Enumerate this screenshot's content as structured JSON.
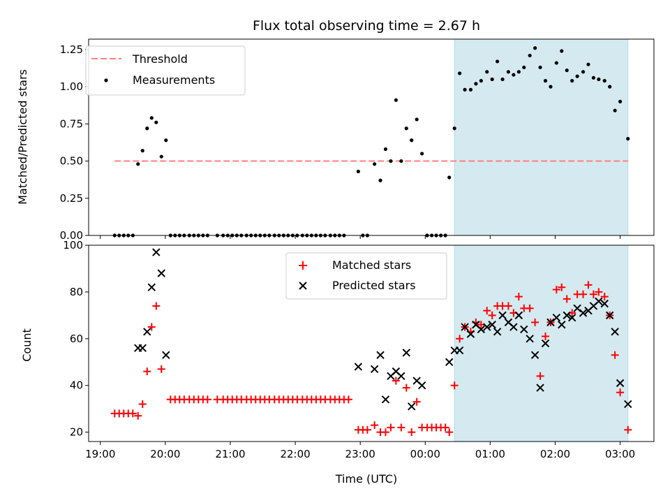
{
  "figure": {
    "title": "Flux total observing time = 2.67 h",
    "xlabel": "Time (UTC)",
    "x_ticks": [
      "19:00",
      "20:00",
      "21:00",
      "22:00",
      "23:00",
      "00:00",
      "01:00",
      "02:00",
      "03:00"
    ]
  },
  "chart_data": [
    {
      "type": "scatter",
      "title": "Flux total observing time = 2.67 h",
      "xlabel": "",
      "ylabel": "Matched/Predicted stars",
      "x_unit": "hours since 19:00 UTC",
      "xlim": [
        -0.18,
        8.52
      ],
      "ylim": [
        0.0,
        1.32
      ],
      "y_ticks": [
        "0.00",
        "0.25",
        "0.50",
        "0.75",
        "1.00",
        "1.25"
      ],
      "y_tick_values": [
        0,
        0.25,
        0.5,
        0.75,
        1.0,
        1.25
      ],
      "highlight_span": [
        5.45,
        8.12
      ],
      "highlight_color": "#d4eaf0",
      "legend": {
        "position": "upper-left",
        "entries": [
          "Threshold",
          "Measurements"
        ]
      },
      "threshold": {
        "name": "Threshold",
        "y": 0.5,
        "x_range": [
          0.22,
          8.12
        ],
        "color": "#ff7f7f"
      },
      "series": [
        {
          "name": "Measurements",
          "color": "#000000",
          "points": [
            [
              0.22,
              0
            ],
            [
              0.29,
              0
            ],
            [
              0.36,
              0
            ],
            [
              0.43,
              0
            ],
            [
              0.5,
              0
            ],
            [
              0.58,
              0.48
            ],
            [
              0.65,
              0.57
            ],
            [
              0.72,
              0.72
            ],
            [
              0.79,
              0.79
            ],
            [
              0.86,
              0.76
            ],
            [
              0.94,
              0.53
            ],
            [
              1.01,
              0.64
            ],
            [
              1.08,
              0
            ],
            [
              1.15,
              0
            ],
            [
              1.22,
              0
            ],
            [
              1.29,
              0
            ],
            [
              1.37,
              0
            ],
            [
              1.44,
              0
            ],
            [
              1.51,
              0
            ],
            [
              1.58,
              0
            ],
            [
              1.65,
              0
            ],
            [
              1.8,
              0
            ],
            [
              1.89,
              0
            ],
            [
              1.96,
              0
            ],
            [
              2.03,
              0
            ],
            [
              2.1,
              0
            ],
            [
              2.17,
              0
            ],
            [
              2.25,
              0
            ],
            [
              2.32,
              0
            ],
            [
              2.39,
              0
            ],
            [
              2.46,
              0
            ],
            [
              2.53,
              0
            ],
            [
              2.6,
              0
            ],
            [
              2.68,
              0
            ],
            [
              2.75,
              0
            ],
            [
              2.82,
              0
            ],
            [
              2.89,
              0
            ],
            [
              2.96,
              0
            ],
            [
              3.03,
              0
            ],
            [
              3.11,
              0
            ],
            [
              3.18,
              0
            ],
            [
              3.25,
              0
            ],
            [
              3.32,
              0
            ],
            [
              3.39,
              0
            ],
            [
              3.46,
              0
            ],
            [
              3.54,
              0
            ],
            [
              3.61,
              0
            ],
            [
              3.68,
              0
            ],
            [
              3.75,
              0
            ],
            [
              3.97,
              0.43
            ],
            [
              4.04,
              0
            ],
            [
              4.11,
              0
            ],
            [
              4.22,
              0.48
            ],
            [
              4.31,
              0.37
            ],
            [
              4.39,
              0.58
            ],
            [
              4.47,
              0.5
            ],
            [
              4.55,
              0.91
            ],
            [
              4.63,
              0.5
            ],
            [
              4.71,
              0.72
            ],
            [
              4.79,
              0.64
            ],
            [
              4.87,
              0.78
            ],
            [
              4.95,
              0.55
            ],
            [
              5.03,
              0
            ],
            [
              5.1,
              0
            ],
            [
              5.17,
              0
            ],
            [
              5.24,
              0
            ],
            [
              5.31,
              0
            ],
            [
              5.37,
              0.39
            ],
            [
              5.45,
              0.72
            ],
            [
              5.53,
              1.09
            ],
            [
              5.61,
              0.98
            ],
            [
              5.7,
              0.98
            ],
            [
              5.78,
              1.02
            ],
            [
              5.86,
              1.04
            ],
            [
              5.95,
              1.1
            ],
            [
              6.03,
              1.05
            ],
            [
              6.11,
              1.17
            ],
            [
              6.19,
              1.05
            ],
            [
              6.28,
              1.1
            ],
            [
              6.36,
              1.08
            ],
            [
              6.44,
              1.1
            ],
            [
              6.52,
              1.13
            ],
            [
              6.61,
              1.21
            ],
            [
              6.69,
              1.26
            ],
            [
              6.77,
              1.13
            ],
            [
              6.85,
              1.04
            ],
            [
              6.93,
              1.0
            ],
            [
              7.02,
              1.16
            ],
            [
              7.1,
              1.24
            ],
            [
              7.18,
              1.11
            ],
            [
              7.26,
              1.04
            ],
            [
              7.34,
              1.07
            ],
            [
              7.43,
              1.1
            ],
            [
              7.51,
              1.15
            ],
            [
              7.59,
              1.06
            ],
            [
              7.67,
              1.05
            ],
            [
              7.76,
              1.04
            ],
            [
              7.84,
              1.0
            ],
            [
              7.92,
              0.84
            ],
            [
              8.0,
              0.9
            ],
            [
              8.12,
              0.65
            ]
          ]
        }
      ]
    },
    {
      "type": "scatter",
      "title": "",
      "xlabel": "Time (UTC)",
      "ylabel": "Count",
      "x_unit": "hours since 19:00 UTC",
      "xlim": [
        -0.18,
        8.52
      ],
      "ylim": [
        16.0,
        100.0
      ],
      "y_ticks": [
        "20",
        "40",
        "60",
        "80",
        "100"
      ],
      "y_tick_values": [
        20,
        40,
        60,
        80,
        100
      ],
      "highlight_span": [
        5.45,
        8.12
      ],
      "highlight_color": "#d4eaf0",
      "legend": {
        "position": "upper-center",
        "entries": [
          "Matched stars",
          "Predicted stars"
        ]
      },
      "series": [
        {
          "name": "Matched stars",
          "marker": "plus",
          "color": "#ff0000",
          "points": [
            [
              0.22,
              28
            ],
            [
              0.29,
              28
            ],
            [
              0.36,
              28
            ],
            [
              0.43,
              28
            ],
            [
              0.5,
              28
            ],
            [
              0.58,
              27
            ],
            [
              0.65,
              32
            ],
            [
              0.72,
              46
            ],
            [
              0.79,
              65
            ],
            [
              0.86,
              74
            ],
            [
              0.94,
              47
            ],
            [
              1.08,
              34
            ],
            [
              1.15,
              34
            ],
            [
              1.22,
              34
            ],
            [
              1.29,
              34
            ],
            [
              1.37,
              34
            ],
            [
              1.44,
              34
            ],
            [
              1.51,
              34
            ],
            [
              1.58,
              34
            ],
            [
              1.65,
              34
            ],
            [
              1.8,
              34
            ],
            [
              1.89,
              34
            ],
            [
              1.96,
              34
            ],
            [
              2.03,
              34
            ],
            [
              2.1,
              34
            ],
            [
              2.17,
              34
            ],
            [
              2.25,
              34
            ],
            [
              2.32,
              34
            ],
            [
              2.39,
              34
            ],
            [
              2.46,
              34
            ],
            [
              2.53,
              34
            ],
            [
              2.6,
              34
            ],
            [
              2.68,
              34
            ],
            [
              2.75,
              34
            ],
            [
              2.82,
              34
            ],
            [
              2.89,
              34
            ],
            [
              2.96,
              34
            ],
            [
              3.03,
              34
            ],
            [
              3.11,
              34
            ],
            [
              3.18,
              34
            ],
            [
              3.25,
              34
            ],
            [
              3.32,
              34
            ],
            [
              3.39,
              34
            ],
            [
              3.46,
              34
            ],
            [
              3.54,
              34
            ],
            [
              3.61,
              34
            ],
            [
              3.68,
              34
            ],
            [
              3.75,
              34
            ],
            [
              3.82,
              34
            ],
            [
              3.97,
              21
            ],
            [
              4.04,
              21
            ],
            [
              4.11,
              21
            ],
            [
              4.22,
              23
            ],
            [
              4.31,
              20
            ],
            [
              4.39,
              20
            ],
            [
              4.47,
              22
            ],
            [
              4.55,
              42
            ],
            [
              4.63,
              22
            ],
            [
              4.71,
              39
            ],
            [
              4.79,
              20
            ],
            [
              4.87,
              33
            ],
            [
              4.95,
              22
            ],
            [
              5.03,
              22
            ],
            [
              5.1,
              22
            ],
            [
              5.17,
              22
            ],
            [
              5.24,
              22
            ],
            [
              5.31,
              22
            ],
            [
              5.37,
              20
            ],
            [
              5.45,
              40
            ],
            [
              5.53,
              60
            ],
            [
              5.61,
              65
            ],
            [
              5.7,
              63
            ],
            [
              5.78,
              67
            ],
            [
              5.86,
              66
            ],
            [
              5.95,
              72
            ],
            [
              6.03,
              70
            ],
            [
              6.11,
              74
            ],
            [
              6.19,
              74
            ],
            [
              6.28,
              74
            ],
            [
              6.36,
              71
            ],
            [
              6.44,
              78
            ],
            [
              6.52,
              73
            ],
            [
              6.61,
              73
            ],
            [
              6.69,
              67
            ],
            [
              6.77,
              44
            ],
            [
              6.85,
              61
            ],
            [
              6.93,
              67
            ],
            [
              7.02,
              81
            ],
            [
              7.1,
              82
            ],
            [
              7.18,
              77
            ],
            [
              7.26,
              71
            ],
            [
              7.34,
              79
            ],
            [
              7.43,
              79
            ],
            [
              7.51,
              83
            ],
            [
              7.59,
              79
            ],
            [
              7.67,
              80
            ],
            [
              7.76,
              78
            ],
            [
              7.84,
              70
            ],
            [
              7.92,
              53
            ],
            [
              8.0,
              37
            ],
            [
              8.12,
              21
            ]
          ]
        },
        {
          "name": "Predicted stars",
          "marker": "x",
          "color": "#000000",
          "points": [
            [
              0.58,
              56
            ],
            [
              0.65,
              56
            ],
            [
              0.72,
              63
            ],
            [
              0.79,
              82
            ],
            [
              0.86,
              97
            ],
            [
              0.94,
              88
            ],
            [
              1.01,
              53
            ],
            [
              3.97,
              48
            ],
            [
              4.22,
              47
            ],
            [
              4.31,
              53
            ],
            [
              4.39,
              34
            ],
            [
              4.47,
              44
            ],
            [
              4.55,
              46
            ],
            [
              4.63,
              44
            ],
            [
              4.71,
              54
            ],
            [
              4.79,
              31
            ],
            [
              4.87,
              42
            ],
            [
              4.95,
              40
            ],
            [
              5.37,
              50
            ],
            [
              5.45,
              55
            ],
            [
              5.53,
              55
            ],
            [
              5.61,
              65
            ],
            [
              5.7,
              62
            ],
            [
              5.78,
              66
            ],
            [
              5.86,
              64
            ],
            [
              5.95,
              65
            ],
            [
              6.03,
              66
            ],
            [
              6.11,
              63
            ],
            [
              6.19,
              70
            ],
            [
              6.28,
              67
            ],
            [
              6.36,
              65
            ],
            [
              6.44,
              70
            ],
            [
              6.52,
              64
            ],
            [
              6.61,
              60
            ],
            [
              6.69,
              53
            ],
            [
              6.77,
              39
            ],
            [
              6.85,
              58
            ],
            [
              6.93,
              67
            ],
            [
              7.02,
              69
            ],
            [
              7.1,
              66
            ],
            [
              7.18,
              70
            ],
            [
              7.26,
              69
            ],
            [
              7.34,
              73
            ],
            [
              7.43,
              71
            ],
            [
              7.51,
              72
            ],
            [
              7.59,
              74
            ],
            [
              7.67,
              76
            ],
            [
              7.76,
              75
            ],
            [
              7.84,
              70
            ],
            [
              7.92,
              63
            ],
            [
              8.0,
              41
            ],
            [
              8.12,
              32
            ]
          ]
        }
      ]
    }
  ]
}
